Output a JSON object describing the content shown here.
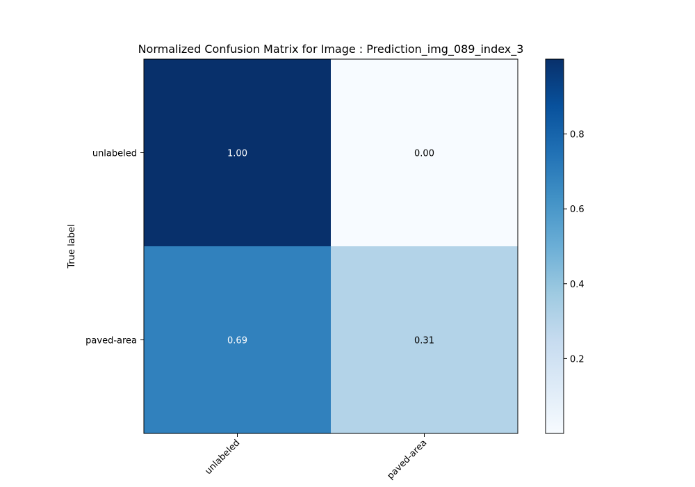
{
  "chart_data": {
    "type": "heatmap",
    "title": "Normalized Confusion Matrix for Image : Prediction_img_089_index_3",
    "ylabel": "True label",
    "xlabel": "",
    "row_labels": [
      "unlabeled",
      "paved-area"
    ],
    "col_labels": [
      "unlabeled",
      "paved-area"
    ],
    "values": [
      [
        1.0,
        0.0
      ],
      [
        0.69,
        0.31
      ]
    ],
    "cell_labels": [
      [
        "1.00",
        "0.00"
      ],
      [
        "0.69",
        "0.31"
      ]
    ],
    "colormap": "Blues",
    "colorbar": {
      "range": [
        0.0,
        1.0
      ],
      "ticks": [
        0.2,
        0.4,
        0.6,
        0.8
      ],
      "tick_labels": [
        "0.2",
        "0.4",
        "0.6",
        "0.8"
      ]
    },
    "grid": false
  }
}
